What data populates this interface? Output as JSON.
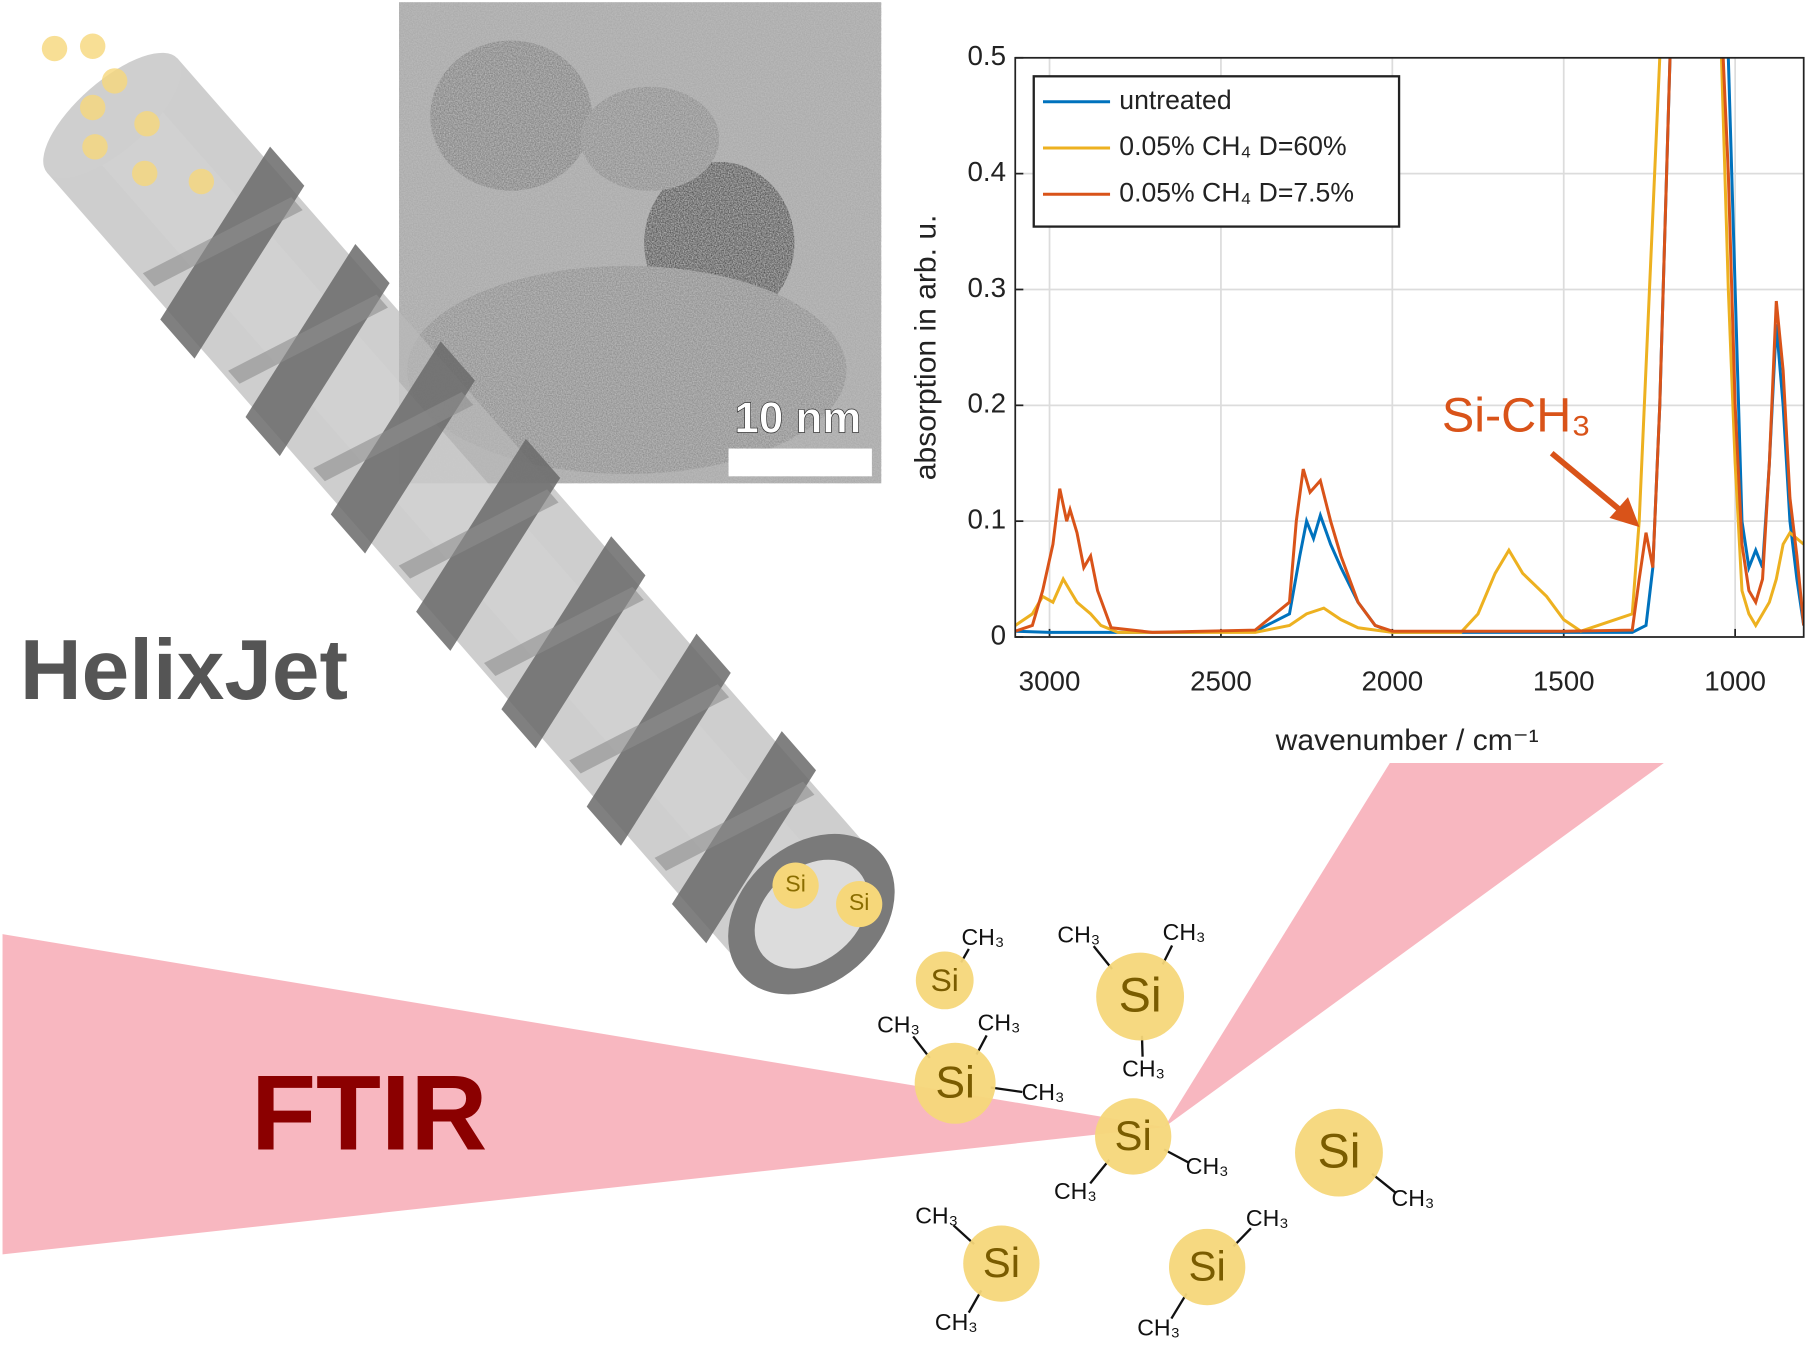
{
  "chart_data": {
    "type": "line",
    "xlabel": "wavenumber / cm⁻¹",
    "ylabel": "absorption in arb. u.",
    "xlim": [
      3100,
      800
    ],
    "ylim": [
      0,
      0.5
    ],
    "xticks": [
      3000,
      2500,
      2000,
      1500,
      1000
    ],
    "yticks": [
      0,
      0.1,
      0.2,
      0.3,
      0.4,
      0.5
    ],
    "grid": true,
    "legend": "upper left",
    "annotation": "Si-CH₃",
    "series": [
      {
        "name": "untreated",
        "color": "#0072bd",
        "x": [
          3100,
          3000,
          2800,
          2600,
          2400,
          2300,
          2270,
          2250,
          2230,
          2210,
          2180,
          2150,
          2100,
          2050,
          2000,
          1500,
          1300,
          1260,
          1240,
          1220,
          1200,
          1180,
          1050,
          1020,
          1000,
          980,
          960,
          940,
          920,
          900,
          880,
          860,
          840,
          820,
          800
        ],
        "values": [
          0.005,
          0.004,
          0.004,
          0.004,
          0.005,
          0.02,
          0.07,
          0.1,
          0.085,
          0.105,
          0.08,
          0.06,
          0.03,
          0.01,
          0.004,
          0.004,
          0.004,
          0.01,
          0.06,
          0.2,
          0.4,
          0.6,
          0.6,
          0.5,
          0.3,
          0.1,
          0.06,
          0.075,
          0.06,
          0.15,
          0.27,
          0.2,
          0.1,
          0.05,
          0.01
        ]
      },
      {
        "name": "0.05% CH₄ D=60%",
        "color": "#edb120",
        "x": [
          3100,
          3050,
          3020,
          2990,
          2960,
          2940,
          2920,
          2880,
          2850,
          2800,
          2400,
          2300,
          2250,
          2200,
          2150,
          2100,
          2000,
          1800,
          1750,
          1700,
          1660,
          1620,
          1550,
          1500,
          1450,
          1400,
          1350,
          1300,
          1280,
          1250,
          1220,
          1200,
          1050,
          1020,
          1000,
          980,
          960,
          940,
          920,
          900,
          880,
          860,
          840,
          820,
          800
        ],
        "values": [
          0.01,
          0.02,
          0.035,
          0.03,
          0.05,
          0.04,
          0.03,
          0.02,
          0.01,
          0.004,
          0.004,
          0.01,
          0.02,
          0.025,
          0.015,
          0.008,
          0.004,
          0.004,
          0.02,
          0.055,
          0.075,
          0.055,
          0.035,
          0.015,
          0.005,
          0.01,
          0.015,
          0.02,
          0.1,
          0.3,
          0.5,
          0.6,
          0.6,
          0.3,
          0.15,
          0.04,
          0.02,
          0.01,
          0.02,
          0.03,
          0.05,
          0.08,
          0.09,
          0.085,
          0.08
        ]
      },
      {
        "name": "0.05% CH₄ D=7.5%",
        "color": "#d95319",
        "x": [
          3100,
          3050,
          3020,
          2990,
          2970,
          2950,
          2940,
          2920,
          2900,
          2880,
          2860,
          2820,
          2700,
          2400,
          2300,
          2280,
          2260,
          2240,
          2210,
          2180,
          2150,
          2100,
          2050,
          2000,
          1500,
          1300,
          1280,
          1260,
          1240,
          1220,
          1200,
          1180,
          1050,
          1020,
          1000,
          980,
          960,
          940,
          920,
          900,
          880,
          860,
          840,
          820,
          800
        ],
        "values": [
          0.005,
          0.01,
          0.04,
          0.08,
          0.128,
          0.1,
          0.11,
          0.09,
          0.06,
          0.07,
          0.04,
          0.008,
          0.004,
          0.006,
          0.03,
          0.1,
          0.145,
          0.125,
          0.135,
          0.1,
          0.07,
          0.03,
          0.01,
          0.005,
          0.005,
          0.006,
          0.05,
          0.09,
          0.06,
          0.2,
          0.4,
          0.6,
          0.6,
          0.4,
          0.2,
          0.08,
          0.04,
          0.03,
          0.05,
          0.15,
          0.29,
          0.23,
          0.12,
          0.07,
          0.01
        ]
      }
    ]
  },
  "diagram": {
    "title": "HelixJet",
    "method": "FTIR",
    "scale_bar": "10 nm",
    "jet_particles": [
      "Si",
      "Si"
    ],
    "molecules": [
      {
        "atom": "Si",
        "groups": [
          "CH₃"
        ]
      },
      {
        "atom": "Si",
        "groups": [
          "CH₃",
          "CH₃",
          "CH₃"
        ]
      },
      {
        "atom": "Si",
        "groups": [
          "CH₃",
          "CH₃",
          "CH₃"
        ]
      },
      {
        "atom": "Si",
        "groups": [
          "CH₃",
          "CH₃"
        ]
      },
      {
        "atom": "Si",
        "groups": [
          "CH₃"
        ]
      },
      {
        "atom": "Si",
        "groups": [
          "CH₃",
          "CH₃"
        ]
      },
      {
        "atom": "Si",
        "groups": [
          "CH₃",
          "CH₃"
        ]
      }
    ]
  }
}
